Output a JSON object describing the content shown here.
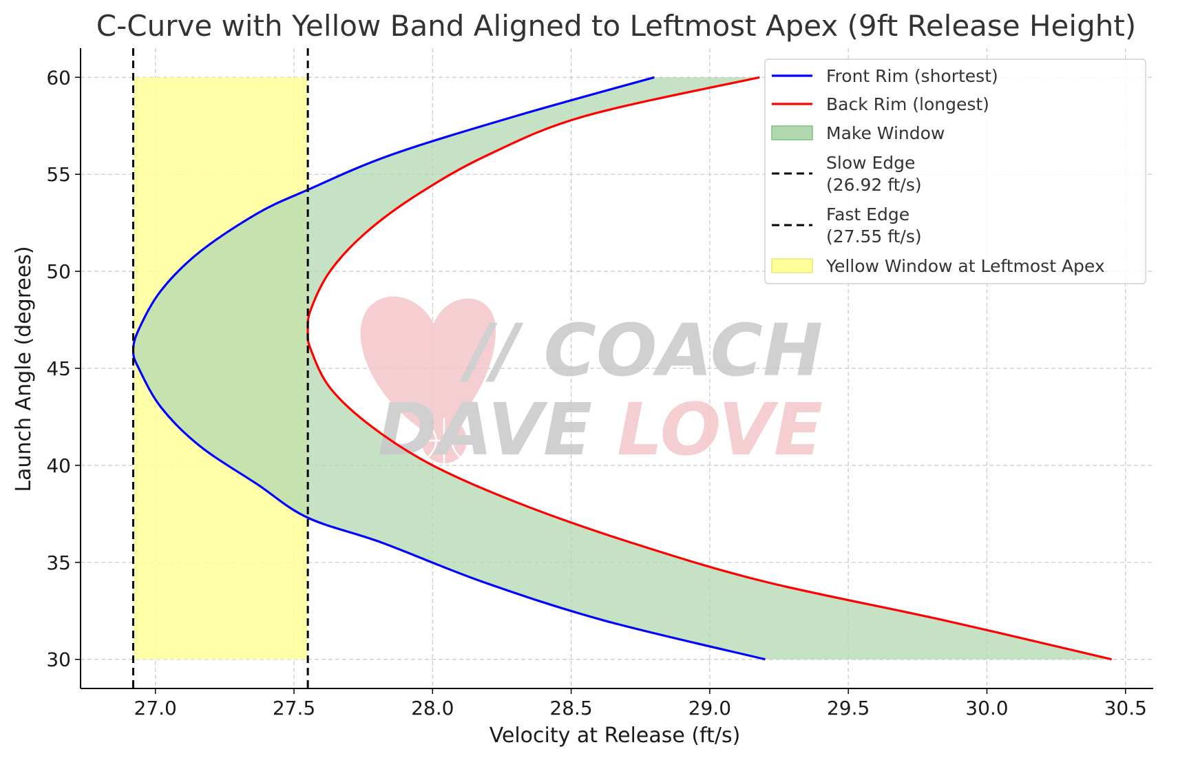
{
  "chart_data": {
    "type": "line",
    "title": "C-Curve with Yellow Band Aligned to Leftmost Apex (9ft Release Height)",
    "xlabel": "Velocity at Release (ft/s)",
    "ylabel": "Launch Angle (degrees)",
    "xlim": [
      26.73,
      30.6
    ],
    "ylim": [
      28.5,
      61.5
    ],
    "xticks": [
      27.0,
      27.5,
      28.0,
      28.5,
      29.0,
      29.5,
      30.0,
      30.5
    ],
    "xtick_labels": [
      "27.0",
      "27.5",
      "28.0",
      "28.5",
      "29.0",
      "29.5",
      "30.0",
      "30.5"
    ],
    "yticks": [
      30,
      35,
      40,
      45,
      50,
      55,
      60
    ],
    "ytick_labels": [
      "30",
      "35",
      "40",
      "45",
      "50",
      "55",
      "60"
    ],
    "grid": true,
    "legend_position": "upper-right",
    "series": [
      {
        "name": "Front Rim (shortest)",
        "color": "#0000ff",
        "points": [
          [
            29.2,
            30
          ],
          [
            28.62,
            32
          ],
          [
            28.18,
            34
          ],
          [
            27.82,
            36
          ],
          [
            27.55,
            37.3
          ],
          [
            27.37,
            39
          ],
          [
            27.16,
            41
          ],
          [
            27.02,
            43
          ],
          [
            26.94,
            45
          ],
          [
            26.92,
            45.9
          ],
          [
            26.94,
            47
          ],
          [
            27.02,
            49
          ],
          [
            27.16,
            51
          ],
          [
            27.37,
            53
          ],
          [
            27.55,
            54.2
          ],
          [
            27.85,
            56
          ],
          [
            28.3,
            58
          ],
          [
            28.8,
            60
          ]
        ]
      },
      {
        "name": "Back Rim (longest)",
        "color": "#ff0000",
        "points": [
          [
            30.45,
            30
          ],
          [
            29.85,
            32
          ],
          [
            29.2,
            34
          ],
          [
            28.72,
            36
          ],
          [
            28.32,
            38
          ],
          [
            28.0,
            40
          ],
          [
            27.78,
            42
          ],
          [
            27.63,
            44
          ],
          [
            27.56,
            46
          ],
          [
            27.55,
            46.9
          ],
          [
            27.56,
            48
          ],
          [
            27.63,
            50
          ],
          [
            27.76,
            52
          ],
          [
            27.95,
            54
          ],
          [
            28.2,
            56
          ],
          [
            28.55,
            58
          ],
          [
            29.18,
            60
          ]
        ]
      }
    ],
    "fill_between": {
      "name": "Make Window",
      "color": "#b2d8b2"
    },
    "vlines": [
      {
        "name": "Slow Edge\n(26.92 ft/s)",
        "x": 26.92,
        "color": "#000000",
        "style": "dashed"
      },
      {
        "name": "Fast Edge\n(27.55 ft/s)",
        "x": 27.55,
        "color": "#000000",
        "style": "dashed"
      }
    ],
    "band": {
      "name": "Yellow Window at Leftmost Apex",
      "x": [
        26.92,
        27.55
      ],
      "y": [
        30,
        60
      ],
      "color": "#ffff99"
    },
    "legend": [
      {
        "label": "Front Rim (shortest)",
        "kind": "line",
        "color": "#0000ff"
      },
      {
        "label": "Back Rim (longest)",
        "kind": "line",
        "color": "#ff0000"
      },
      {
        "label": "Make Window",
        "kind": "patch",
        "color": "#b2d8b2"
      },
      {
        "label": "Slow Edge",
        "label2": "(26.92 ft/s)",
        "kind": "dashed",
        "color": "#000000"
      },
      {
        "label": "Fast Edge",
        "label2": "(27.55 ft/s)",
        "kind": "dashed",
        "color": "#000000"
      },
      {
        "label": "Yellow Window at Leftmost Apex",
        "kind": "patch",
        "color": "#ffff99"
      }
    ],
    "watermark": {
      "line1": "// COACH",
      "line2a": "DAVE ",
      "line2b": "LOVE"
    }
  }
}
